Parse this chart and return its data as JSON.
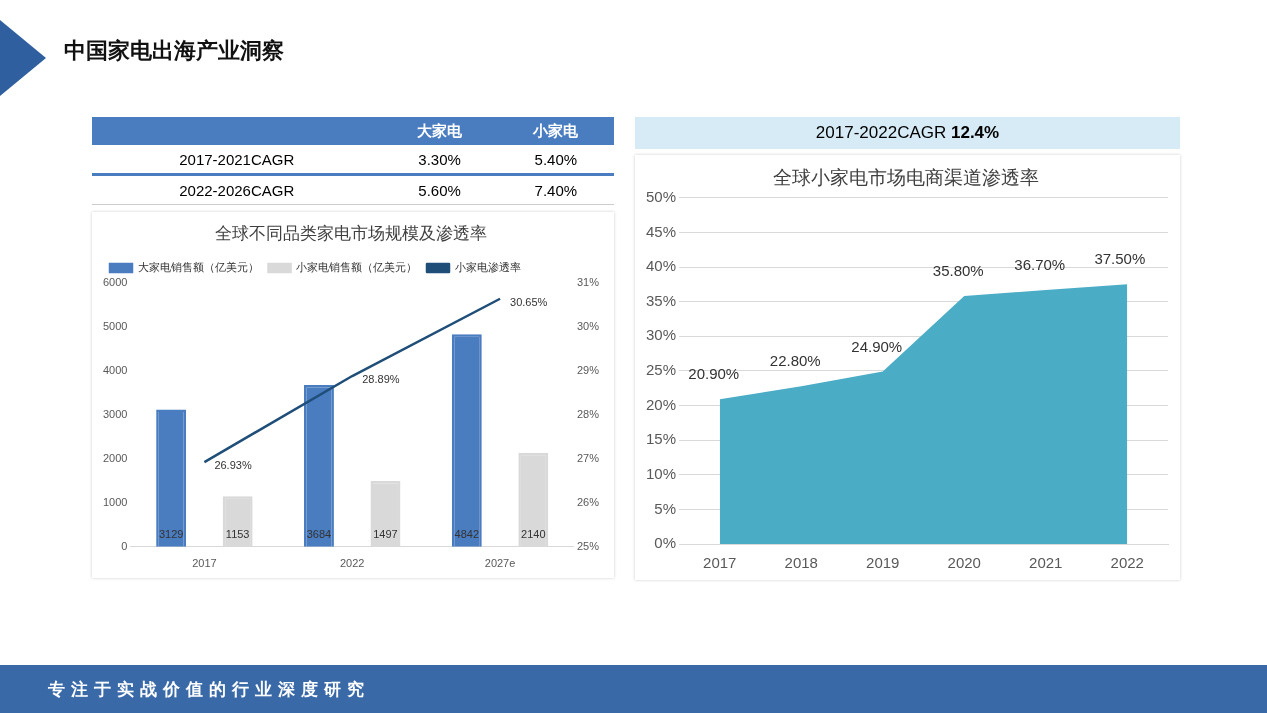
{
  "chart_data": [
    {
      "type": "other",
      "title": "中国家电出海产业洞察",
      "annotations": [
        "大家电",
        "小家电",
        "2017-2021CAGR",
        "3.30%",
        "5.40%",
        "2022-2026CAGR",
        "5.60%",
        "7.40%",
        "专注于实战价值的行业深度研究"
      ]
    },
    {
      "type": "bar",
      "title": "全球不同品类家电市场规模及渗透率",
      "categories": [
        "2017",
        "2022",
        "2027e"
      ],
      "legend": "top left",
      "grid": false,
      "ylim": [
        0,
        6000
      ],
      "yticks": [
        0,
        1000,
        2000,
        3000,
        4000,
        5000,
        6000
      ],
      "y2lim": [
        25,
        31
      ],
      "y2ticks": [
        {
          "value": 25,
          "label": "25%"
        },
        {
          "value": 26,
          "label": "26%"
        },
        {
          "value": 27,
          "label": "27%"
        },
        {
          "value": 28,
          "label": "28%"
        },
        {
          "value": 29,
          "label": "29%"
        },
        {
          "value": 30,
          "label": "30%"
        },
        {
          "value": 31,
          "label": "31%"
        }
      ],
      "series": [
        {
          "name": "大家电销售额（亿美元）",
          "color": "#4a7cc0",
          "values": [
            3129,
            3684,
            4842
          ],
          "value_labels": [
            "3129",
            "3684",
            "4842"
          ]
        },
        {
          "name": "小家电销售额（亿美元）",
          "color": "#d9d9d9",
          "values": [
            1153,
            1497,
            2140
          ],
          "value_labels": [
            "1153",
            "1497",
            "2140"
          ]
        },
        {
          "name": "小家电渗透率",
          "type": "line",
          "axis": "y2",
          "color": "#1f4e79",
          "marker": "none",
          "values": [
            26.93,
            28.89,
            30.65
          ],
          "value_labels": [
            "26.93%",
            "28.89%",
            "30.65%"
          ]
        }
      ]
    },
    {
      "type": "area",
      "title": "全球小家电市场电商渠道渗透率",
      "subtitle": "2017-2022CAGR 12.4%",
      "categories": [
        "2017",
        "2018",
        "2019",
        "2020",
        "2021",
        "2022"
      ],
      "legend": false,
      "grid": "y",
      "ylim": [
        0,
        50
      ],
      "yticks": [
        {
          "value": 0,
          "label": "0%"
        },
        {
          "value": 5,
          "label": "5%"
        },
        {
          "value": 10,
          "label": "10%"
        },
        {
          "value": 15,
          "label": "15%"
        },
        {
          "value": 20,
          "label": "20%"
        },
        {
          "value": 25,
          "label": "25%"
        },
        {
          "value": 30,
          "label": "30%"
        },
        {
          "value": 35,
          "label": "35%"
        },
        {
          "value": 40,
          "label": "40%"
        },
        {
          "value": 45,
          "label": "45%"
        },
        {
          "value": 50,
          "label": "50%"
        }
      ],
      "series": [
        {
          "color": "#4bacc6",
          "values": [
            20.9,
            22.8,
            24.9,
            35.8,
            36.7,
            37.5
          ],
          "value_labels": [
            "20.90%",
            "22.80%",
            "24.90%",
            "35.80%",
            "36.70%",
            "37.50%"
          ]
        }
      ]
    }
  ]
}
